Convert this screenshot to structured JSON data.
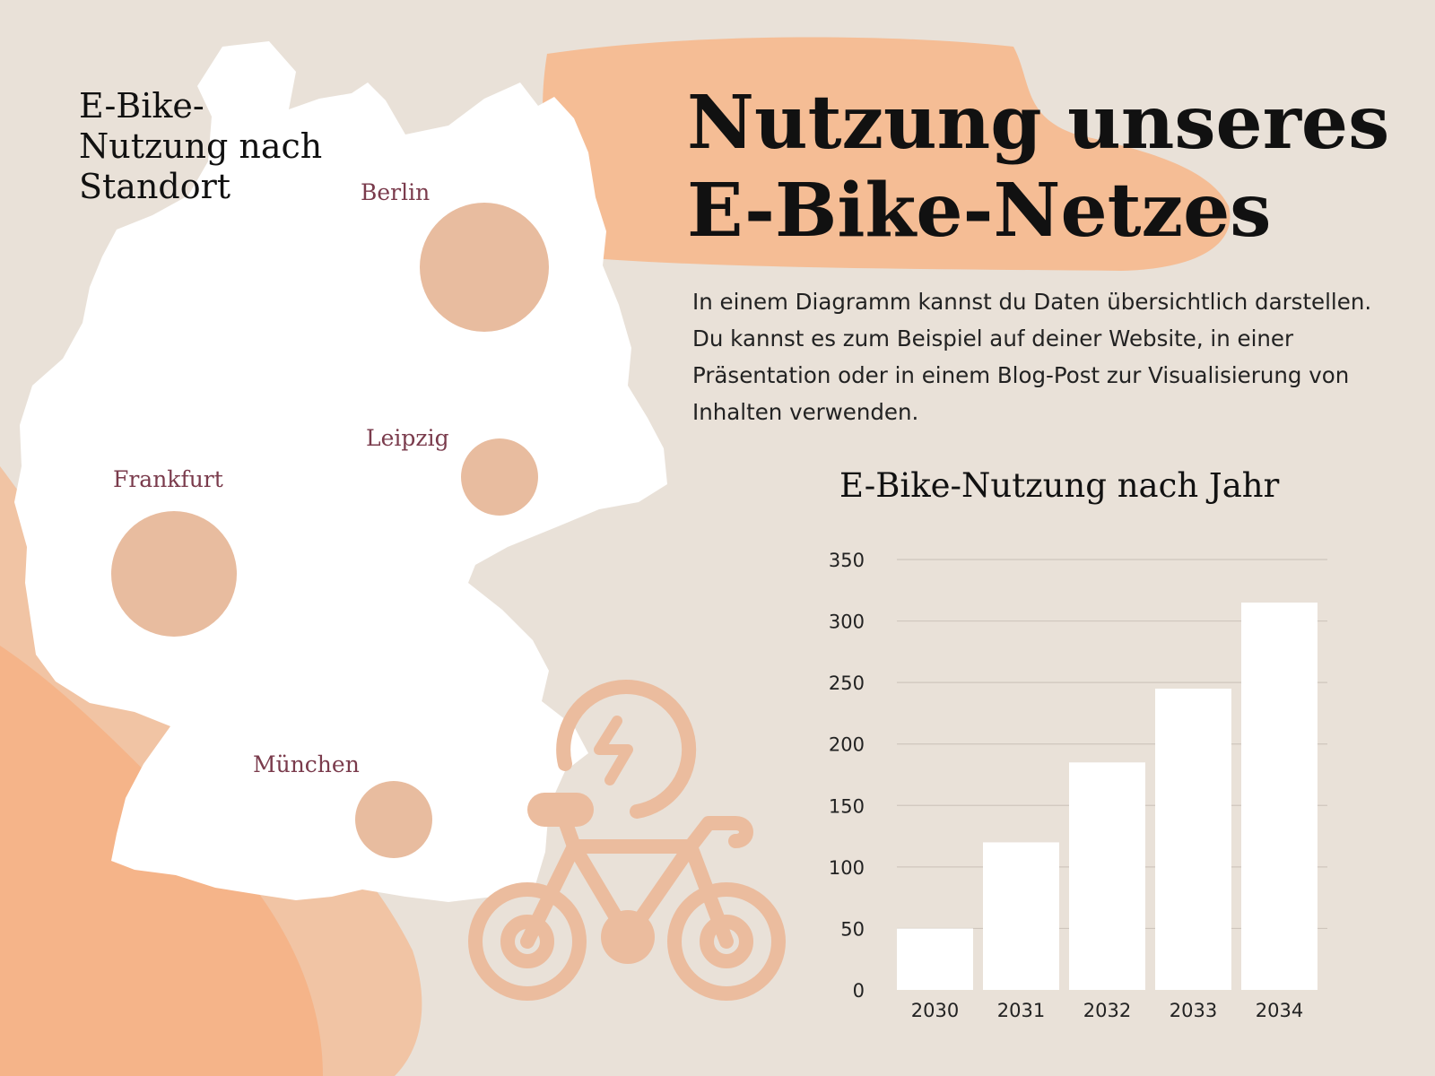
{
  "map": {
    "title_lines": [
      "E-Bike-",
      "Nutzung nach",
      "Standort"
    ],
    "cities": [
      {
        "name": "Berlin"
      },
      {
        "name": "Leipzig"
      },
      {
        "name": "Frankfurt"
      },
      {
        "name": "München"
      }
    ]
  },
  "header": {
    "title_line1": "Nutzung unseres",
    "title_line2": "E-Bike-Netzes"
  },
  "description": "In einem Diagramm kannst du Daten übersichtlich darstellen. Du kannst es zum Beispiel auf deiner Website, in einer Präsentation oder in einem Blog-Post zur Visualisierung von Inhalten verwenden.",
  "colors": {
    "background": "#e9e1d8",
    "accent_peach": "#f6b98e",
    "bubble": "#e8bc9f",
    "map_fill": "#ffffff",
    "city_label": "#7a3b4c",
    "bar_fill": "#ffffff"
  },
  "icons": [
    "e-bike-icon"
  ],
  "chart_data": {
    "type": "bar",
    "title": "E-Bike-Nutzung nach Jahr",
    "categories": [
      "2030",
      "2031",
      "2032",
      "2033",
      "2034"
    ],
    "values": [
      50,
      120,
      185,
      245,
      315
    ],
    "ylim": [
      0,
      350
    ],
    "yticks": [
      0,
      50,
      100,
      150,
      200,
      250,
      300,
      350
    ],
    "grid": true,
    "xlabel": "",
    "ylabel": ""
  }
}
